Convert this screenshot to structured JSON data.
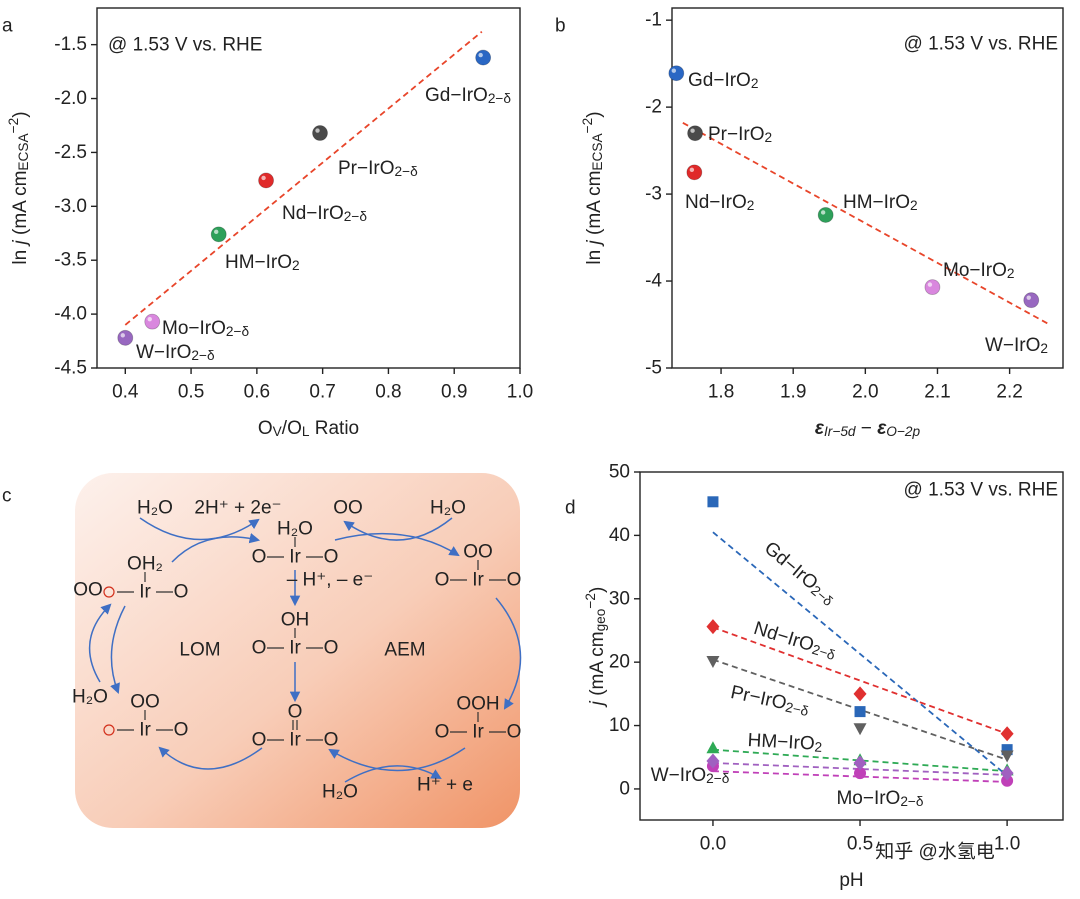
{
  "chart_data": [
    {
      "panel": "a",
      "type": "scatter",
      "annotation": "@ 1.53 V vs. RHE",
      "xlabel": [
        {
          "text": "O"
        },
        {
          "text": "V",
          "style": "sub"
        },
        {
          "text": "/O"
        },
        {
          "text": "L",
          "style": "sub"
        },
        {
          "text": " Ratio"
        }
      ],
      "ylabel": [
        {
          "text": "ln "
        },
        {
          "text": "j",
          "style": "italic"
        },
        {
          "text": " (mA cm"
        },
        {
          "text": "ECSA",
          "style": "sub"
        },
        {
          "text": "−2",
          "style": "sup"
        },
        {
          "text": ")"
        }
      ],
      "xlim": [
        0.357,
        1.0
      ],
      "xticks": [
        0.4,
        0.5,
        0.6,
        0.7,
        0.8,
        0.9,
        {
          "value": 1,
          "label": "1.0"
        }
      ],
      "ylim": [
        -4.5,
        -1.16
      ],
      "yticks": [
        -1.5,
        {
          "value": -2,
          "label": "-2.0"
        },
        -2.5,
        {
          "value": -3,
          "label": "-3.0"
        },
        -3.5,
        {
          "value": -4,
          "label": "-4.0"
        },
        -4.5
      ],
      "series": [
        {
          "name": [
            {
              "text": "Gd−IrO"
            },
            {
              "text": "2−δ",
              "style": "sub"
            }
          ],
          "color": "#2a67c4",
          "x": [
            0.944
          ],
          "values": [
            -1.62
          ]
        },
        {
          "name": [
            {
              "text": "Pr−IrO"
            },
            {
              "text": "2−δ",
              "style": "sub"
            }
          ],
          "color": "#4a4a4a",
          "x": [
            0.696
          ],
          "values": [
            -2.32
          ]
        },
        {
          "name": [
            {
              "text": "Nd−IrO"
            },
            {
              "text": "2−δ",
              "style": "sub"
            }
          ],
          "color": "#e02a2a",
          "x": [
            0.614
          ],
          "values": [
            -2.76
          ]
        },
        {
          "name": [
            {
              "text": "HM−IrO"
            },
            {
              "text": "2",
              "style": "sub"
            }
          ],
          "color": "#2ea05a",
          "x": [
            0.542
          ],
          "values": [
            -3.26
          ]
        },
        {
          "name": [
            {
              "text": "Mo−IrO"
            },
            {
              "text": "2−δ",
              "style": "sub"
            }
          ],
          "color": "#d987de",
          "x": [
            0.441
          ],
          "values": [
            -4.07
          ]
        },
        {
          "name": [
            {
              "text": "W−IrO"
            },
            {
              "text": "2−δ",
              "style": "sub"
            }
          ],
          "color": "#9868c0",
          "x": [
            0.4
          ],
          "values": [
            -4.22
          ]
        }
      ],
      "fit": {
        "color": "#e8452a",
        "x": [
          0.4,
          0.942
        ],
        "values": [
          -4.1,
          -1.38
        ]
      }
    },
    {
      "panel": "b",
      "type": "scatter",
      "annotation": "@ 1.53 V vs. RHE",
      "xlabel": [
        {
          "text": "ε",
          "style": "bold-italic"
        },
        {
          "text": "Ir−5d",
          "style": "sub-italic"
        },
        {
          "text": " − "
        },
        {
          "text": "ε",
          "style": "bold-italic"
        },
        {
          "text": "O−2p",
          "style": "sub-italic"
        }
      ],
      "ylabel": [
        {
          "text": "ln "
        },
        {
          "text": "j",
          "style": "italic"
        },
        {
          "text": " (mA cm"
        },
        {
          "text": "ECSA",
          "style": "sub"
        },
        {
          "text": "−2",
          "style": "sup"
        },
        {
          "text": ")"
        }
      ],
      "xlim": [
        1.732,
        2.274
      ],
      "xticks": [
        1.8,
        1.9,
        {
          "value": 2,
          "label": "2.0"
        },
        2.1,
        2.2
      ],
      "ylim": [
        -5,
        -0.86
      ],
      "yticks": [
        -1,
        -2,
        -3,
        -4,
        -5
      ],
      "series": [
        {
          "name": [
            {
              "text": "Gd−IrO"
            },
            {
              "text": "2",
              "style": "sub"
            }
          ],
          "color": "#2a67c4",
          "x": [
            1.738
          ],
          "values": [
            -1.61
          ]
        },
        {
          "name": [
            {
              "text": "Pr−IrO"
            },
            {
              "text": "2",
              "style": "sub"
            }
          ],
          "color": "#4a4a4a",
          "x": [
            1.764
          ],
          "values": [
            -2.3
          ]
        },
        {
          "name": [
            {
              "text": "Nd−IrO"
            },
            {
              "text": "2",
              "style": "sub"
            }
          ],
          "color": "#e02a2a",
          "x": [
            1.763
          ],
          "values": [
            -2.75
          ]
        },
        {
          "name": [
            {
              "text": "HM−IrO"
            },
            {
              "text": "2",
              "style": "sub"
            }
          ],
          "color": "#2ea05a",
          "x": [
            1.945
          ],
          "values": [
            -3.24
          ]
        },
        {
          "name": [
            {
              "text": "Mo−IrO"
            },
            {
              "text": "2",
              "style": "sub"
            }
          ],
          "color": "#d987de",
          "x": [
            2.093
          ],
          "values": [
            -4.07
          ]
        },
        {
          "name": [
            {
              "text": "W−IrO"
            },
            {
              "text": "2",
              "style": "sub"
            }
          ],
          "color": "#9868c0",
          "x": [
            2.23
          ],
          "values": [
            -4.22
          ]
        }
      ],
      "fit": {
        "color": "#e8452a",
        "x": [
          1.747,
          2.253
        ],
        "values": [
          -2.18,
          -4.49
        ]
      }
    },
    {
      "panel": "d",
      "type": "scatter",
      "annotation": "@ 1.53 V vs. RHE",
      "xlabel": [
        {
          "text": "pH"
        }
      ],
      "ylabel": [
        {
          "text": "j",
          "style": "italic"
        },
        {
          "text": " (mA cm"
        },
        {
          "text": "geo",
          "style": "sub"
        },
        {
          "text": "−2",
          "style": "sup"
        },
        {
          "text": ")"
        }
      ],
      "xlim": [
        -0.248,
        1.19
      ],
      "xticks": [
        {
          "value": 0,
          "label": "0.0"
        },
        0.5,
        {
          "value": 1,
          "label": "1.0"
        }
      ],
      "ylim": [
        -4.9,
        50
      ],
      "yticks": [
        0,
        10,
        20,
        30,
        40,
        50
      ],
      "series": [
        {
          "name": [
            {
              "text": "Gd−IrO"
            },
            {
              "text": "2−δ",
              "style": "sub"
            }
          ],
          "color": "#2a67b8",
          "marker": "square",
          "x": [
            0,
            0.5,
            1
          ],
          "values": [
            45.3,
            12.2,
            6.2
          ],
          "fit": {
            "x": [
              0,
              1
            ],
            "values": [
              40.5,
              2.1
            ]
          }
        },
        {
          "name": [
            {
              "text": "Nd−IrO"
            },
            {
              "text": "2−δ",
              "style": "sub"
            }
          ],
          "color": "#e03030",
          "marker": "diamond",
          "x": [
            0,
            0.5,
            1
          ],
          "values": [
            25.6,
            15,
            8.7
          ],
          "fit": {
            "x": [
              0,
              1
            ],
            "values": [
              25.5,
              8.7
            ]
          }
        },
        {
          "name": [
            {
              "text": "Pr−IrO"
            },
            {
              "text": "2−δ",
              "style": "sub"
            }
          ],
          "color": "#606060",
          "marker": "triangle-down",
          "x": [
            0,
            0.5,
            1
          ],
          "values": [
            20.1,
            9.5,
            5.2
          ],
          "fit": {
            "x": [
              0,
              1
            ],
            "values": [
              20.4,
              4.6
            ]
          }
        },
        {
          "name": [
            {
              "text": "HM−IrO"
            },
            {
              "text": "2",
              "style": "sub"
            }
          ],
          "color": "#2eaa55",
          "marker": "triangle-up",
          "x": [
            0,
            0.5,
            1
          ],
          "values": [
            6.5,
            4.6,
            3
          ],
          "fit": {
            "x": [
              0,
              1
            ],
            "values": [
              6.2,
              2.8
            ]
          }
        },
        {
          "name": [
            {
              "text": "Mo−IrO"
            },
            {
              "text": "2−δ",
              "style": "sub"
            }
          ],
          "color": "#c040b8",
          "marker": "circle",
          "x": [
            0,
            0.5,
            1
          ],
          "values": [
            3.6,
            2.5,
            1.3
          ],
          "fit": {
            "x": [
              0,
              1
            ],
            "values": [
              2.8,
              1.1
            ]
          }
        },
        {
          "name": [
            {
              "text": "W−IrO"
            },
            {
              "text": "2−δ",
              "style": "sub"
            }
          ],
          "color": "#a060c0",
          "marker": "diamond",
          "x": [
            0,
            0.5,
            1
          ],
          "values": [
            4.4,
            4.1,
            2.5
          ],
          "fit": {
            "x": [
              0,
              1
            ],
            "values": [
              4.1,
              2.2
            ]
          }
        }
      ]
    }
  ],
  "diagram": {
    "panel": "c",
    "labels": [
      "H₂O",
      "2H⁺ + 2e⁻",
      "OO",
      "H₂O",
      "– H⁺, – e⁻",
      "LOM",
      "AEM",
      "OO",
      "H₂O",
      "H₂O",
      "H⁺ + e"
    ],
    "complexes": [
      {
        "top": "H₂O",
        "left": "O",
        "center": "Ir",
        "right": "O"
      },
      {
        "top": "OH₂",
        "left": null,
        "center": "Ir",
        "right": "O"
      },
      {
        "top": "OO",
        "left": "O",
        "center": "Ir",
        "right": "O"
      },
      {
        "top": "OH",
        "left": "O",
        "center": "Ir",
        "right": "O"
      },
      {
        "top": "O",
        "left": "O",
        "center": "Ir",
        "right": "O"
      },
      {
        "top": "OO",
        "left": null,
        "center": "Ir",
        "right": "O"
      },
      {
        "top": "OOH",
        "left": "O",
        "center": "Ir",
        "right": "O"
      }
    ]
  },
  "watermark": "知乎 @水氢电"
}
